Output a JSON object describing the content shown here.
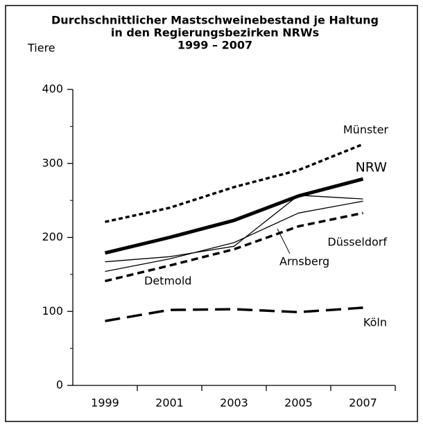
{
  "chart_data": {
    "type": "line",
    "title": [
      "Durchschnittlicher Mastschweinebestand je Haltung",
      "in den Regierungsbezirken NRWs",
      "1999 – 2007"
    ],
    "y_label": "Tiere",
    "categories": [
      "1999",
      "2001",
      "2003",
      "2005",
      "2007"
    ],
    "ylim": [
      0,
      400
    ],
    "yticks": [
      0,
      100,
      200,
      300,
      400
    ],
    "series": [
      {
        "name": "Münster",
        "color": "#000000",
        "line_style": "dotted",
        "line_width": 3.5,
        "values": [
          221,
          240,
          268,
          291,
          326
        ]
      },
      {
        "name": "NRW",
        "color": "#000000",
        "line_style": "solid",
        "line_width": 5,
        "values": [
          179,
          200,
          223,
          256,
          279
        ]
      },
      {
        "name": "Düsseldorf",
        "color": "#000000",
        "line_style": "solid",
        "line_width": 1.3,
        "values": [
          167,
          174,
          188,
          257,
          252
        ]
      },
      {
        "name": "Arnsberg",
        "color": "#000000",
        "line_style": "solid",
        "line_width": 1.3,
        "values": [
          154,
          171,
          193,
          233,
          249
        ]
      },
      {
        "name": "Detmold",
        "color": "#000000",
        "line_style": "dashed",
        "line_width": 3.5,
        "values": [
          141,
          162,
          184,
          215,
          233
        ]
      },
      {
        "name": "Köln",
        "color": "#000000",
        "line_style": "longdash",
        "line_width": 3.5,
        "values": [
          87,
          102,
          103,
          99,
          105
        ]
      }
    ]
  }
}
